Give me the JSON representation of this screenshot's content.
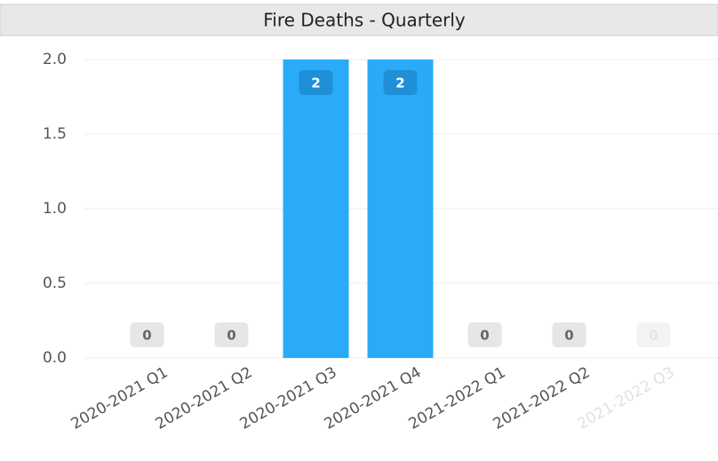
{
  "chart_data": {
    "type": "bar",
    "title": "Fire Deaths - Quarterly",
    "categories": [
      "2020-2021 Q1",
      "2020-2021 Q2",
      "2020-2021 Q3",
      "2020-2021 Q4",
      "2021-2022 Q1",
      "2021-2022 Q2",
      "2021-2022 Q3"
    ],
    "values": [
      0,
      0,
      2,
      2,
      0,
      0,
      0
    ],
    "color": "#29abf7",
    "ylim": [
      0,
      2
    ],
    "yticks": [
      {
        "value": 0,
        "label": "0.0"
      },
      0.5,
      {
        "value": 1,
        "label": "1.0"
      },
      1.5,
      {
        "value": 2,
        "label": "2.0"
      }
    ],
    "grid": true
  }
}
